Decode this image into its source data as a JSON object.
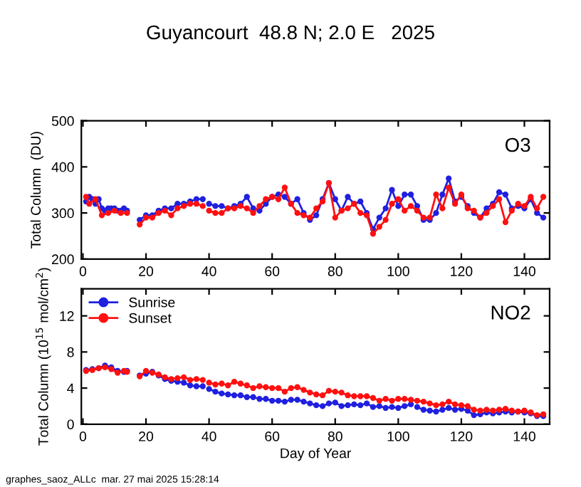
{
  "chart_data": [
    {
      "type": "line",
      "title": "Guyancourt  48.8 N; 2.0 E   2025",
      "ylabel": "Total Column  (DU)",
      "xlim": [
        -0.5,
        148
      ],
      "xticks": [
        0,
        20,
        40,
        60,
        80,
        100,
        120,
        140
      ],
      "ylim": [
        200,
        500
      ],
      "yticks": [
        200,
        300,
        400,
        500
      ],
      "grid": false,
      "legend": false,
      "marker": "circle",
      "line_style": "solid",
      "annotations": [
        "O3"
      ],
      "series": [
        {
          "color": "#2020e0",
          "x": [
            1,
            2,
            3,
            4,
            5,
            6,
            7,
            8,
            9,
            10,
            11,
            12,
            13,
            14,
            16,
            18,
            20,
            22,
            24,
            26,
            28,
            30,
            32,
            34,
            36,
            38,
            39,
            40,
            42,
            44,
            46,
            48,
            50,
            52,
            54,
            56,
            58,
            60,
            62,
            64,
            66,
            68,
            70,
            72,
            74,
            76,
            78,
            80,
            82,
            84,
            86,
            88,
            90,
            92,
            94,
            96,
            98,
            100,
            102,
            104,
            106,
            108,
            110,
            112,
            114,
            116,
            118,
            120,
            122,
            124,
            126,
            128,
            130,
            132,
            134,
            136,
            138,
            140,
            142,
            144,
            146
          ],
          "values": [
            325,
            335,
            330,
            320,
            330,
            310,
            305,
            310,
            310,
            310,
            305,
            305,
            310,
            305,
            null,
            285,
            295,
            295,
            305,
            310,
            310,
            320,
            320,
            325,
            330,
            330,
            null,
            320,
            315,
            315,
            310,
            315,
            320,
            335,
            310,
            305,
            320,
            335,
            340,
            335,
            320,
            330,
            300,
            285,
            295,
            330,
            365,
            330,
            305,
            335,
            320,
            325,
            300,
            265,
            290,
            310,
            350,
            315,
            340,
            340,
            315,
            285,
            285,
            300,
            340,
            375,
            325,
            335,
            315,
            300,
            290,
            310,
            320,
            345,
            340,
            310,
            315,
            310,
            330,
            300,
            290
          ]
        },
        {
          "color": "#ff1010",
          "x": [
            1,
            2,
            4,
            6,
            8,
            10,
            12,
            14,
            16,
            18,
            20,
            22,
            24,
            26,
            28,
            30,
            32,
            34,
            36,
            38,
            39,
            40,
            42,
            44,
            46,
            48,
            50,
            52,
            54,
            56,
            58,
            60,
            62,
            64,
            66,
            68,
            70,
            72,
            74,
            76,
            78,
            80,
            82,
            84,
            86,
            88,
            90,
            92,
            94,
            96,
            98,
            100,
            102,
            104,
            106,
            108,
            110,
            112,
            114,
            116,
            118,
            120,
            122,
            124,
            126,
            128,
            130,
            132,
            134,
            136,
            138,
            140,
            142,
            144,
            146
          ],
          "values": [
            335,
            320,
            330,
            295,
            300,
            305,
            300,
            300,
            null,
            275,
            290,
            290,
            300,
            305,
            295,
            310,
            315,
            320,
            320,
            315,
            null,
            305,
            300,
            300,
            310,
            310,
            315,
            310,
            300,
            315,
            330,
            335,
            330,
            355,
            320,
            300,
            295,
            290,
            310,
            325,
            365,
            290,
            305,
            310,
            320,
            300,
            295,
            255,
            270,
            285,
            320,
            330,
            305,
            315,
            305,
            290,
            290,
            340,
            310,
            355,
            320,
            340,
            310,
            305,
            290,
            300,
            315,
            330,
            280,
            305,
            320,
            315,
            335,
            310,
            335
          ]
        }
      ]
    },
    {
      "type": "line",
      "xlabel": "Day of Year",
      "ylabel": "Total Column (10$^{15}$ mol/cm$^{2}$)",
      "xlim": [
        -0.5,
        148
      ],
      "xticks": [
        0,
        20,
        40,
        60,
        80,
        100,
        120,
        140
      ],
      "ylim": [
        0,
        15
      ],
      "yticks": [
        0,
        4,
        8,
        12
      ],
      "grid": false,
      "legend": "top left",
      "marker": "circle",
      "line_style": "solid",
      "annotations": [
        "NO2",
        "graphes_saoz_ALLc  mar. 27 mai 2025 15:28:14"
      ],
      "series": [
        {
          "name": "Sunrise",
          "color": "#2020e0",
          "x": [
            1,
            3,
            5,
            7,
            9,
            11,
            13,
            14,
            16,
            18,
            20,
            22,
            24,
            26,
            28,
            30,
            32,
            34,
            36,
            38,
            39,
            40,
            42,
            44,
            46,
            48,
            50,
            52,
            54,
            56,
            58,
            60,
            62,
            64,
            66,
            68,
            70,
            72,
            74,
            76,
            78,
            80,
            82,
            84,
            86,
            88,
            90,
            92,
            94,
            96,
            98,
            100,
            102,
            104,
            105,
            106,
            108,
            110,
            112,
            114,
            116,
            118,
            120,
            122,
            124,
            126,
            128,
            130,
            132,
            134,
            136,
            138,
            140,
            142,
            144,
            146
          ],
          "values": [
            6.0,
            6.1,
            6.2,
            6.5,
            6.3,
            5.9,
            5.8,
            5.9,
            null,
            5.4,
            5.6,
            5.8,
            5.4,
            5.0,
            4.8,
            4.7,
            4.6,
            4.3,
            4.2,
            4.2,
            null,
            3.9,
            3.6,
            3.4,
            3.3,
            3.2,
            3.2,
            3.0,
            3.0,
            2.8,
            2.8,
            2.6,
            2.6,
            2.5,
            2.7,
            2.7,
            2.5,
            2.3,
            2.1,
            2.0,
            2.3,
            2.4,
            2.0,
            2.1,
            2.2,
            2.1,
            2.3,
            1.9,
            2.0,
            1.8,
            1.9,
            1.8,
            2.0,
            2.2,
            null,
            1.9,
            1.6,
            1.5,
            1.4,
            1.6,
            1.8,
            1.6,
            1.7,
            1.5,
            1.0,
            1.1,
            1.3,
            1.2,
            1.3,
            1.4,
            1.3,
            1.4,
            1.3,
            1.2,
            0.9,
            0.9
          ]
        },
        {
          "name": "Sunset",
          "color": "#ff1010",
          "x": [
            1,
            3,
            5,
            7,
            9,
            11,
            13,
            14,
            16,
            18,
            20,
            22,
            24,
            26,
            28,
            30,
            32,
            34,
            36,
            38,
            39,
            40,
            42,
            44,
            46,
            48,
            50,
            52,
            54,
            56,
            58,
            60,
            62,
            64,
            66,
            68,
            70,
            72,
            74,
            76,
            78,
            80,
            82,
            84,
            86,
            88,
            90,
            92,
            94,
            96,
            98,
            100,
            102,
            104,
            106,
            108,
            110,
            112,
            114,
            116,
            118,
            120,
            122,
            124,
            126,
            128,
            130,
            132,
            134,
            136,
            138,
            140,
            142,
            144,
            146
          ],
          "values": [
            5.9,
            6.0,
            6.2,
            6.3,
            6.1,
            5.7,
            5.9,
            5.8,
            null,
            5.3,
            5.9,
            5.7,
            5.5,
            5.2,
            5.0,
            5.1,
            5.2,
            4.9,
            5.0,
            4.9,
            null,
            4.6,
            4.4,
            4.5,
            4.3,
            4.7,
            4.5,
            4.3,
            4.0,
            4.2,
            4.1,
            4.0,
            4.0,
            3.6,
            4.0,
            4.1,
            3.8,
            3.5,
            3.3,
            3.2,
            3.7,
            3.6,
            3.5,
            3.2,
            3.1,
            3.1,
            3.1,
            2.9,
            2.6,
            2.8,
            2.6,
            2.8,
            2.8,
            2.7,
            2.6,
            2.5,
            2.3,
            2.1,
            2.2,
            2.5,
            2.2,
            2.1,
            2.0,
            1.6,
            1.5,
            1.6,
            1.5,
            1.6,
            1.7,
            1.5,
            1.4,
            1.5,
            1.3,
            1.0,
            1.1
          ]
        }
      ]
    }
  ]
}
